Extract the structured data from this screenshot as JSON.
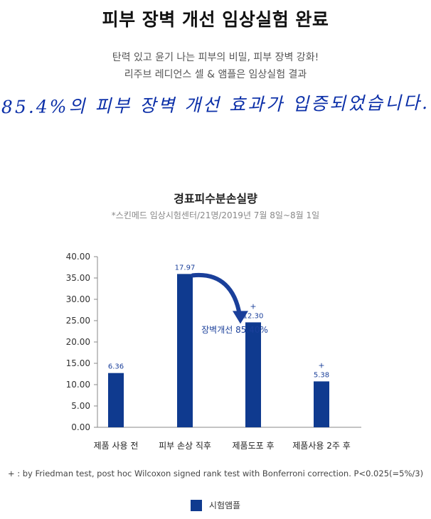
{
  "header": {
    "title": "피부 장벽 개선 임상실험 완료",
    "line1": "탄력 있고 윤기 나는 피부의 비밀, 피부 장벽 강화!",
    "line2": "리주브 레디언스 셀 & 앰플은 임상실험 결과",
    "handwritten": "85.4%의 피부 장벽 개선 효과가 입증되었습니다."
  },
  "colors": {
    "bar": "#0f3a8f",
    "hand": "#0b2fa8"
  },
  "chart_data": {
    "type": "bar",
    "title": "경표피수분손실량",
    "note": "*스킨메드 임상시험센터/21명/2019년 7월 8일~8월 1일",
    "categories": [
      "제품 사용 전",
      "피부 손상 직후",
      "제품도포 후",
      "제품사용 2주 후"
    ],
    "series": [
      {
        "name": "시험앰플",
        "values": [
          6.36,
          17.97,
          12.3,
          5.38
        ]
      }
    ],
    "value_labels": [
      "6.36",
      "17.97",
      "12.30",
      "5.38"
    ],
    "significance": [
      "",
      "",
      "+",
      "+"
    ],
    "ylim": [
      0,
      40
    ],
    "yticks": [
      "0.00",
      "5.00",
      "10.00",
      "15.00",
      "20.00",
      "25.00",
      "30.00",
      "35.00",
      "40.00"
    ],
    "annotation": "장벽개선 85.40%",
    "legend_position": "bottom",
    "grid": false
  },
  "footnote": "+ : by Friedman test, post hoc Wilcoxon signed rank test with Bonferroni correction. P<0.025(=5%/3)"
}
